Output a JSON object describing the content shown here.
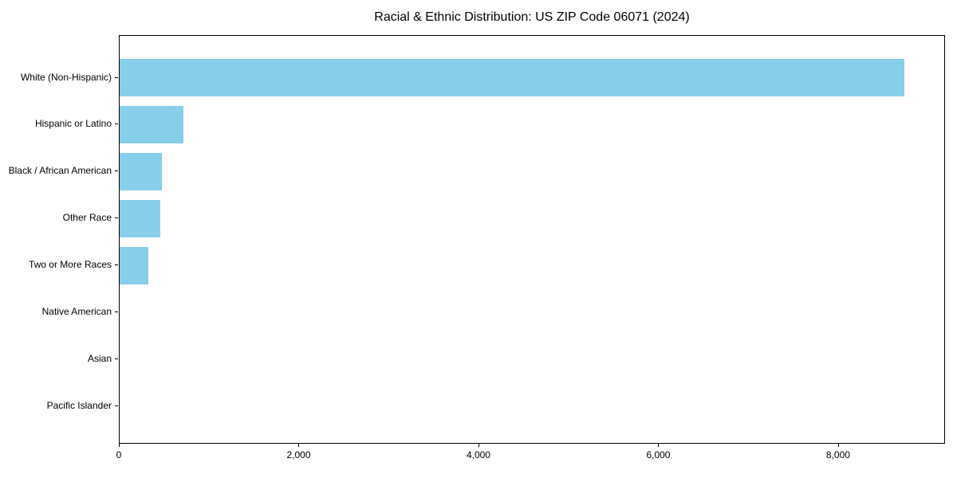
{
  "chart_data": {
    "type": "bar",
    "orientation": "horizontal",
    "title": "Racial & Ethnic Distribution: US ZIP Code 06071 (2024)",
    "categories": [
      "White (Non-Hispanic)",
      "Hispanic or Latino",
      "Black / African American",
      "Other Race",
      "Two or More Races",
      "Native American",
      "Asian",
      "Pacific Islander"
    ],
    "values": [
      8745,
      710,
      470,
      450,
      320,
      0,
      0,
      0
    ],
    "xlim": [
      0,
      9189
    ],
    "xticks": [
      0,
      2000,
      4000,
      6000,
      8000
    ],
    "xtick_labels": [
      "0",
      "2,000",
      "4,000",
      "6,000",
      "8,000"
    ],
    "bar_color": "#87CEEB",
    "background_color": "#ffffff",
    "axis_color": "#000000",
    "legend": "none",
    "grid": false
  }
}
